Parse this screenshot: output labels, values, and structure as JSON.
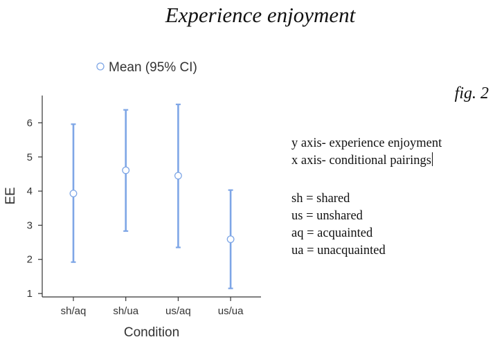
{
  "title": "Experience enjoyment",
  "fig_label": "fig. 2",
  "notes": {
    "axis_lines": [
      "y axis- experience enjoyment",
      "x axis- conditional pairings"
    ],
    "abbreviations": [
      "sh = shared",
      "us = unshared",
      "aq = acquainted",
      "ua = unacquainted"
    ]
  },
  "chart_data": {
    "type": "scatter",
    "xlabel": "Condition",
    "ylabel": "EE",
    "categories": [
      "sh/aq",
      "sh/ua",
      "us/aq",
      "us/ua"
    ],
    "series": [
      {
        "name": "Mean (95% CI)",
        "values": [
          3.93,
          4.61,
          4.45,
          2.59
        ],
        "ci_lower": [
          1.92,
          2.83,
          2.35,
          1.15
        ],
        "ci_upper": [
          5.96,
          6.38,
          6.54,
          4.03
        ]
      }
    ],
    "ylim": [
      0.9,
      6.8
    ],
    "yticks": [
      1,
      2,
      3,
      4,
      5,
      6
    ],
    "legend_position": "top",
    "grid": false,
    "color": "#7ea6e6"
  }
}
